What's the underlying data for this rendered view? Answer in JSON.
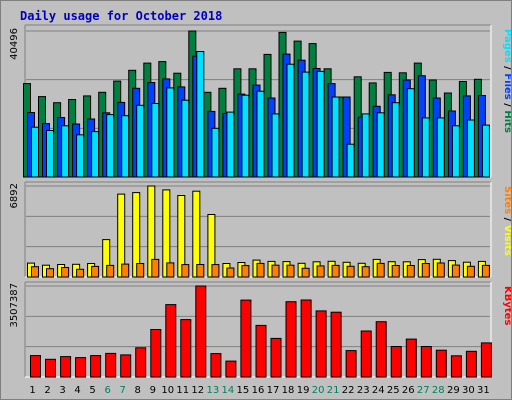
{
  "chart_data": {
    "title": "Daily usage for October 2018",
    "type": "bar",
    "categories": [
      "1",
      "2",
      "3",
      "4",
      "5",
      "6",
      "7",
      "8",
      "9",
      "10",
      "11",
      "12",
      "13",
      "14",
      "15",
      "16",
      "17",
      "18",
      "19",
      "20",
      "21",
      "22",
      "23",
      "24",
      "25",
      "26",
      "27",
      "28",
      "29",
      "30",
      "31"
    ],
    "weekend_days": [
      "6",
      "7",
      "13",
      "14",
      "20",
      "21",
      "27",
      "28"
    ],
    "panels": [
      {
        "ylabel_parts": [
          "Pages",
          "Files",
          "Hits"
        ],
        "ymax_label": "40496",
        "ymax": 40496,
        "series": [
          {
            "name": "Hits",
            "color": "#008040",
            "values": [
              25900,
              22300,
              20600,
              21500,
              22500,
              23500,
              26600,
              29600,
              31600,
              32000,
              28800,
              40500,
              23500,
              24600,
              30000,
              30000,
              34000,
              40100,
              37700,
              37000,
              30000,
              22200,
              27800,
              26100,
              29000,
              28900,
              31600,
              26900,
              23300,
              26500,
              27100
            ]
          },
          {
            "name": "Files",
            "color": "#0040ff",
            "values": [
              17900,
              14800,
              16500,
              14700,
              16100,
              17800,
              20700,
              24600,
              26200,
              27200,
              25000,
              33500,
              18200,
              17600,
              23000,
              25500,
              21900,
              34100,
              32400,
              30100,
              25900,
              22200,
              16600,
              19600,
              22800,
              26900,
              28100,
              21900,
              18300,
              22500,
              22600
            ]
          },
          {
            "name": "Pages",
            "color": "#00e0ff",
            "values": [
              13800,
              12900,
              14200,
              11700,
              12600,
              17300,
              17000,
              19900,
              20400,
              24700,
              21300,
              34800,
              13500,
              18000,
              22700,
              23800,
              17500,
              31300,
              29100,
              29300,
              22200,
              9100,
              17500,
              17800,
              20600,
              24500,
              16400,
              16400,
              14200,
              15800,
              14400
            ]
          }
        ]
      },
      {
        "ylabel_parts": [
          "Sites",
          "Visits"
        ],
        "ymax_label": "6892",
        "ymax": 6892,
        "series": [
          {
            "name": "Visits",
            "color": "#ffff00",
            "values": [
              1050,
              890,
              950,
              960,
              1020,
              2830,
              6280,
              6390,
              6890,
              6600,
              6170,
              6500,
              4730,
              1020,
              1100,
              1280,
              1180,
              1170,
              1040,
              1150,
              1190,
              1110,
              1040,
              1330,
              1160,
              1150,
              1320,
              1340,
              1240,
              1120,
              1180
            ]
          },
          {
            "name": "Sites",
            "color": "#ff8000",
            "values": [
              780,
              630,
              720,
              580,
              800,
              880,
              980,
              1020,
              1330,
              1070,
              940,
              950,
              940,
              680,
              860,
              1030,
              890,
              890,
              660,
              840,
              880,
              810,
              780,
              1030,
              870,
              870,
              1020,
              1060,
              900,
              810,
              880
            ]
          }
        ]
      },
      {
        "ylabel_parts": [
          "KBytes"
        ],
        "ymax_label": "3507387",
        "ymax": 3507387,
        "series": [
          {
            "name": "KBytes",
            "color": "#ff0000",
            "values": [
              823000,
              683000,
              788000,
              749000,
              825000,
              911000,
              852000,
              1125000,
              1831000,
              2789000,
              2213000,
              3507000,
              903000,
              611000,
              2964000,
              1989000,
              1488000,
              2901000,
              2966000,
              2548000,
              2499000,
              1016000,
              1774000,
              2133000,
              1175000,
              1460000,
              1176000,
              1034000,
              819000,
              991000,
              1315000
            ]
          }
        ]
      }
    ]
  }
}
